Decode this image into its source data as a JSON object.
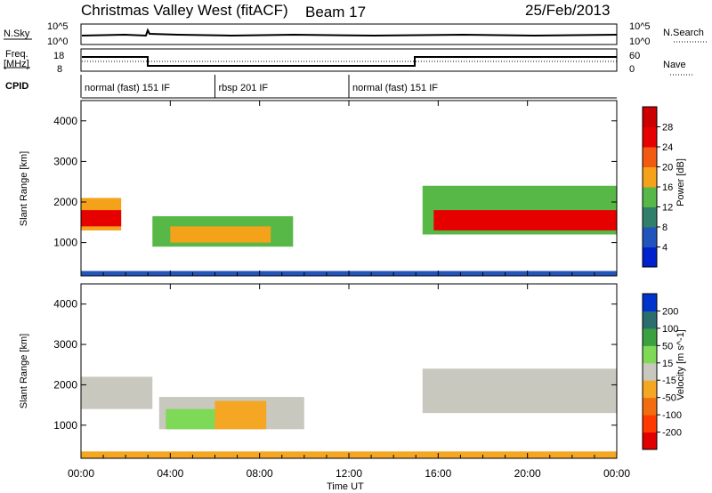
{
  "header": {
    "station": "Christmas Valley West (fitACF)",
    "beam": "Beam 17",
    "date": "25/Feb/2013"
  },
  "top_panels": {
    "nsky_label": "N.Sky",
    "nsky_ticks": [
      "10^5",
      "10^0"
    ],
    "nsearch_label": "N.Search",
    "nsearch_ticks": [
      "10^5",
      "10^0"
    ],
    "freq_label_1": "Freq.",
    "freq_label_2": "[MHz]",
    "freq_ticks": [
      "18",
      "8"
    ],
    "nave_label": "Nave",
    "nave_ticks": [
      "60",
      "0"
    ],
    "cpid_label": "CPID",
    "cpid_segments": [
      {
        "label": "normal (fast) 151 IF",
        "start": 0,
        "end": 6
      },
      {
        "label": "rbsp 201 IF",
        "start": 6,
        "end": 12
      },
      {
        "label": "normal (fast) 151 IF",
        "start": 12,
        "end": 24
      }
    ]
  },
  "chart_data": [
    {
      "type": "heatmap",
      "name": "power",
      "ylabel": "Slant Range [km]",
      "ylim": [
        180,
        4500
      ],
      "yticks": [
        1000,
        2000,
        3000,
        4000
      ],
      "xlim": [
        0,
        24
      ],
      "colorbar": {
        "label": "Power [dB]",
        "ticks": [
          4,
          8,
          12,
          16,
          20,
          24,
          28
        ],
        "range": [
          0,
          32
        ],
        "colors": [
          "#0022cc",
          "#2255bb",
          "#2f7f6a",
          "#57b847",
          "#f4a21a",
          "#f25a12",
          "#e60000",
          "#cc0000"
        ]
      }
    },
    {
      "type": "heatmap",
      "name": "velocity",
      "ylabel": "Slant Range [km]",
      "ylim": [
        180,
        4500
      ],
      "yticks": [
        1000,
        2000,
        3000,
        4000
      ],
      "xlim": [
        0,
        24
      ],
      "colorbar": {
        "label": "Velocity [m s^-1]",
        "ticks": [
          -200,
          -100,
          -50,
          -15,
          15,
          50,
          100,
          200
        ],
        "colors": [
          "#e00000",
          "#ff3a00",
          "#f26d10",
          "#f5a623",
          "#c8c8bf",
          "#7ed957",
          "#3aa040",
          "#2b6e6e",
          "#0033cc"
        ]
      },
      "xticks": [
        "00:00",
        "04:00",
        "08:00",
        "12:00",
        "16:00",
        "20:00",
        "00:00"
      ],
      "xlabel": "Time UT"
    }
  ],
  "colors": {
    "axis": "#000000",
    "background": "#ffffff"
  }
}
